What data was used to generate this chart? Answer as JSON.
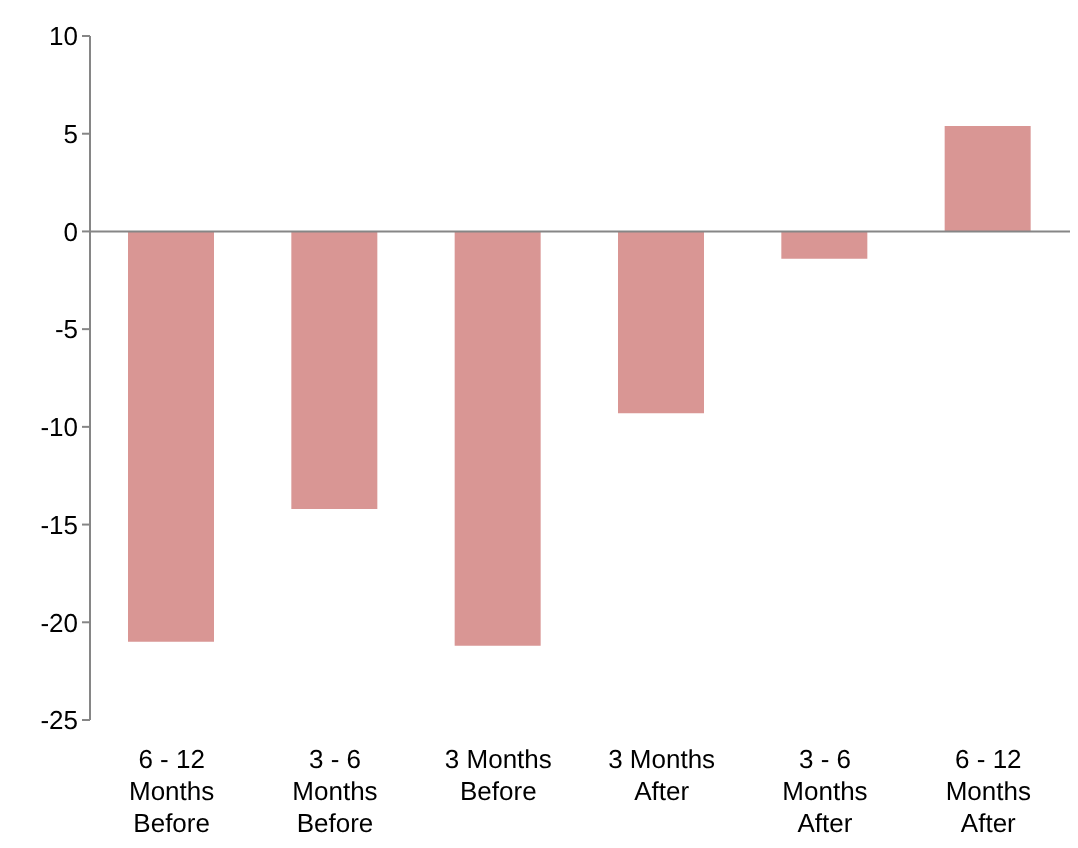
{
  "chart_data": {
    "type": "bar",
    "categories": [
      "6 - 12 Months Before",
      "3 - 6 Months Before",
      "3 Months Before",
      "3 Months After",
      "3 - 6 Months After",
      "6 - 12 Months After"
    ],
    "values": [
      -21.0,
      -14.2,
      -21.2,
      -9.3,
      -1.4,
      5.4
    ],
    "color": "#d99694",
    "ylim": [
      -25,
      10
    ],
    "yticks": [
      -25,
      -20,
      -15,
      -10,
      -5,
      0,
      5,
      10
    ],
    "ref_lines": [
      {
        "axis": "y",
        "value": 0,
        "color": "#868686"
      }
    ]
  }
}
